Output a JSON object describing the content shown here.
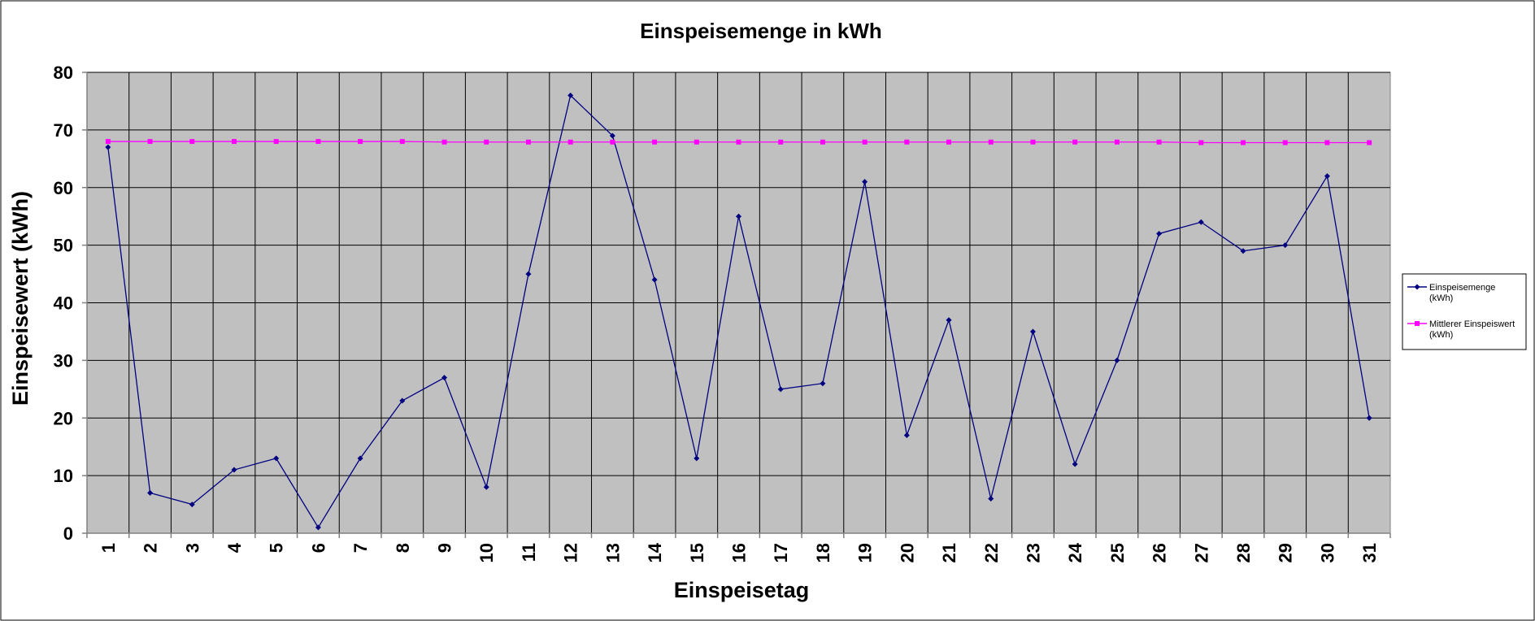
{
  "chart_data": {
    "type": "line",
    "title": "Einspeisemenge in kWh",
    "xlabel": "Einspeisetag",
    "ylabel": "Einspeisewert  (kWh)",
    "categories": [
      "1",
      "2",
      "3",
      "4",
      "5",
      "6",
      "7",
      "8",
      "9",
      "10",
      "11",
      "12",
      "13",
      "14",
      "15",
      "16",
      "17",
      "18",
      "19",
      "20",
      "21",
      "22",
      "23",
      "24",
      "25",
      "26",
      "27",
      "28",
      "29",
      "30",
      "31"
    ],
    "ylim": [
      0,
      80
    ],
    "yticks": [
      0,
      10,
      20,
      30,
      40,
      50,
      60,
      70,
      80
    ],
    "grid": true,
    "legend_position": "right",
    "plot_background": "#c0c0c0",
    "series": [
      {
        "name": "Einspeisemenge (kWh)",
        "legend_lines": [
          "Einspeisemenge",
          "(kWh)"
        ],
        "color": "#000080",
        "marker": "diamond",
        "values": [
          67,
          7,
          5,
          11,
          13,
          1,
          13,
          23,
          27,
          8,
          45,
          76,
          69,
          44,
          13,
          55,
          25,
          26,
          61,
          17,
          37,
          6,
          35,
          12,
          30,
          52,
          54,
          49,
          50,
          62,
          20
        ]
      },
      {
        "name": "Mittlerer Einspeiswert (kWh)",
        "legend_lines": [
          "Mittlerer Einspeiswert",
          "(kWh)"
        ],
        "color": "#ff00ff",
        "marker": "square",
        "values": [
          68,
          68,
          68,
          68,
          68,
          68,
          68,
          68,
          67.9,
          67.9,
          67.9,
          67.9,
          67.9,
          67.9,
          67.9,
          67.9,
          67.9,
          67.9,
          67.9,
          67.9,
          67.9,
          67.9,
          67.9,
          67.9,
          67.9,
          67.9,
          67.8,
          67.8,
          67.8,
          67.8,
          67.8
        ]
      }
    ]
  }
}
